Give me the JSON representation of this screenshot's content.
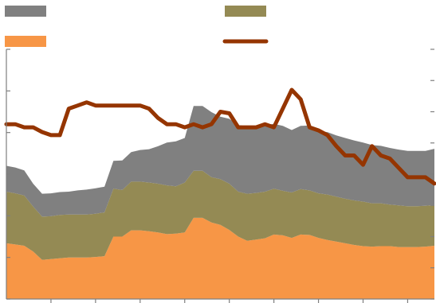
{
  "chart_data": {
    "type": "area",
    "stacked": true,
    "title": "",
    "xlabel": "",
    "ylabel": "",
    "legend_placement": "top",
    "grid": false,
    "x": [
      0,
      2,
      4,
      6,
      8,
      10,
      12,
      14,
      16,
      18,
      20,
      22,
      24,
      26,
      28,
      30,
      32,
      34,
      36,
      38,
      40,
      42,
      44,
      46,
      48,
      50,
      52,
      54,
      56,
      58,
      60,
      62,
      64,
      66,
      68,
      70,
      72,
      74,
      76,
      78,
      80,
      82,
      84,
      86,
      88,
      90,
      92,
      94,
      96
    ],
    "xlim": [
      0,
      96
    ],
    "ylim_left": [
      0,
      6
    ],
    "ylim_right": [
      0,
      8
    ],
    "series": [
      {
        "color": "#f79646",
        "values": [
          1.34,
          1.31,
          1.28,
          1.14,
          0.94,
          0.96,
          0.98,
          1.0,
          1.0,
          1.0,
          1.01,
          1.03,
          1.5,
          1.5,
          1.65,
          1.65,
          1.63,
          1.6,
          1.56,
          1.57,
          1.6,
          1.95,
          1.95,
          1.84,
          1.78,
          1.66,
          1.5,
          1.4,
          1.43,
          1.46,
          1.55,
          1.53,
          1.47,
          1.55,
          1.54,
          1.47,
          1.42,
          1.38,
          1.34,
          1.3,
          1.27,
          1.26,
          1.27,
          1.27,
          1.25,
          1.25,
          1.25,
          1.26,
          1.28
        ]
      },
      {
        "color": "#948a54",
        "values": [
          1.24,
          1.23,
          1.21,
          1.08,
          1.04,
          1.03,
          1.04,
          1.03,
          1.03,
          1.03,
          1.04,
          1.05,
          1.15,
          1.12,
          1.17,
          1.17,
          1.17,
          1.17,
          1.17,
          1.14,
          1.2,
          1.13,
          1.13,
          1.09,
          1.1,
          1.11,
          1.08,
          1.13,
          1.12,
          1.12,
          1.1,
          1.07,
          1.09,
          1.09,
          1.07,
          1.07,
          1.09,
          1.08,
          1.07,
          1.07,
          1.07,
          1.04,
          1.03,
          1.0,
          1.0,
          0.98,
          0.98,
          0.98,
          0.98
        ]
      },
      {
        "color": "#808080",
        "values": [
          0.62,
          0.62,
          0.6,
          0.55,
          0.55,
          0.55,
          0.55,
          0.55,
          0.58,
          0.6,
          0.61,
          0.62,
          0.67,
          0.71,
          0.71,
          0.76,
          0.8,
          0.9,
          1.03,
          1.08,
          1.07,
          1.56,
          1.56,
          1.56,
          1.5,
          1.56,
          1.6,
          1.62,
          1.6,
          1.6,
          1.56,
          1.56,
          1.5,
          1.52,
          1.56,
          1.5,
          1.5,
          1.47,
          1.46,
          1.44,
          1.42,
          1.4,
          1.38,
          1.36,
          1.34,
          1.33,
          1.33,
          1.32,
          1.35
        ]
      },
      {
        "color": "#953500",
        "values": [
          5.6,
          5.6,
          5.5,
          5.5,
          5.35,
          5.25,
          5.25,
          6.1,
          6.2,
          6.3,
          6.2,
          6.2,
          6.2,
          6.2,
          6.2,
          6.2,
          6.1,
          5.8,
          5.6,
          5.6,
          5.5,
          5.6,
          5.5,
          5.6,
          6.0,
          5.95,
          5.5,
          5.5,
          5.5,
          5.6,
          5.5,
          6.1,
          6.7,
          6.4,
          5.5,
          5.4,
          5.25,
          4.9,
          4.6,
          4.6,
          4.3,
          4.9,
          4.6,
          4.5,
          4.2,
          3.9,
          3.9,
          3.9,
          3.7
        ]
      }
    ]
  }
}
